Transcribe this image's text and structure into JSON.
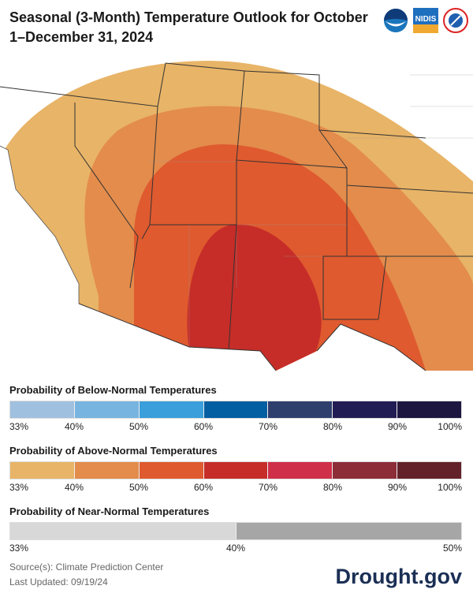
{
  "title": "Seasonal (3-Month) Temperature Outlook for October 1–December 31, 2024",
  "logos": [
    "NOAA",
    "NIDIS",
    "National Weather Service"
  ],
  "map": {
    "categories": [
      {
        "label": "33–40% Above",
        "color": "#E8B467"
      },
      {
        "label": "40–50% Above",
        "color": "#E38C4C"
      },
      {
        "label": "50–60% Above",
        "color": "#DF5A2F"
      },
      {
        "label": "60–70% Above",
        "color": "#C62D28"
      }
    ]
  },
  "legend": {
    "below": {
      "title": "Probability of Below-Normal Temperatures",
      "colors": [
        "#A0C0E0",
        "#78B4E0",
        "#3A9FDB",
        "#045EA2",
        "#2E3F6E",
        "#221C54",
        "#1D1640"
      ],
      "ticks": [
        "33%",
        "40%",
        "50%",
        "60%",
        "70%",
        "80%",
        "90%",
        "100%"
      ]
    },
    "above": {
      "title": "Probability of Above-Normal Temperatures",
      "colors": [
        "#E8B467",
        "#E38C4C",
        "#DF5A2F",
        "#C62D28",
        "#CF2F49",
        "#8C2D38",
        "#63222A"
      ],
      "ticks": [
        "33%",
        "40%",
        "50%",
        "60%",
        "70%",
        "80%",
        "90%",
        "100%"
      ]
    },
    "near": {
      "title": "Probability of Near-Normal Temperatures",
      "colors": [
        "#D8D8D8",
        "#A6A6A6"
      ],
      "ticks": [
        "33%",
        "40%",
        "50%"
      ]
    }
  },
  "footer": {
    "source": "Source(s): Climate Prediction Center",
    "updated": "Last Updated: 09/19/24",
    "brand": "Drought.gov"
  }
}
